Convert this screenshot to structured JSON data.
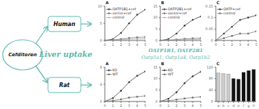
{
  "title": "Liver uptake",
  "color": "#5BB8B0",
  "annotations": [
    "Cefditoren",
    "Human",
    "Rat",
    "OATP1B1, OATP2B1",
    "Oatp1a1, Oatp1a4, Oatp1b2"
  ],
  "chart_data": [
    {
      "type": "line",
      "title": "A",
      "legend": "upper left",
      "x": [
        0,
        1,
        2,
        3,
        4,
        5
      ],
      "xlim": [
        0,
        5
      ],
      "xticks": [
        0,
        1,
        2,
        3,
        4,
        5
      ],
      "ylim": [
        0,
        10
      ],
      "yticks": [
        0,
        5,
        10
      ],
      "series": [
        {
          "name": "OATP1B1+cef",
          "color": "#333333",
          "marker": "circle",
          "values": [
            0.0,
            0.4,
            2.2,
            5.0,
            7.5,
            9.0
          ]
        },
        {
          "name": "vector+cef",
          "color": "#777777",
          "marker": "square",
          "values": [
            0.0,
            0.15,
            0.4,
            0.7,
            0.9,
            1.0
          ]
        },
        {
          "name": "control",
          "color": "#aaaaaa",
          "marker": "triangle",
          "values": [
            0.0,
            0.08,
            0.2,
            0.35,
            0.45,
            0.5
          ]
        }
      ]
    },
    {
      "type": "line",
      "title": "B",
      "legend": "upper left",
      "x": [
        0,
        1,
        2,
        3,
        4,
        5
      ],
      "xlim": [
        0,
        5
      ],
      "xticks": [
        0,
        1,
        2,
        3,
        4,
        5
      ],
      "ylim": [
        0,
        15
      ],
      "yticks": [
        0,
        5,
        10,
        15
      ],
      "series": [
        {
          "name": "OATP2B1+cef",
          "color": "#333333",
          "marker": "circle",
          "values": [
            0.0,
            0.6,
            3.0,
            6.5,
            9.0,
            10.5
          ]
        },
        {
          "name": "vector+cef",
          "color": "#777777",
          "marker": "square",
          "values": [
            0.0,
            0.15,
            0.4,
            0.7,
            0.9,
            1.0
          ]
        },
        {
          "name": "control",
          "color": "#aaaaaa",
          "marker": "triangle",
          "values": [
            0.0,
            0.08,
            0.2,
            0.35,
            0.45,
            0.5
          ]
        }
      ]
    },
    {
      "type": "line",
      "title": "C",
      "legend": "upper left",
      "x": [
        0,
        1,
        2,
        3,
        4,
        5
      ],
      "xlim": [
        0,
        5
      ],
      "xticks": [
        0,
        1,
        2,
        3,
        4,
        5
      ],
      "ylim": [
        0,
        0.15
      ],
      "yticks": [
        0,
        0.05,
        0.1,
        0.15
      ],
      "series": [
        {
          "name": "OATP+cef",
          "color": "#333333",
          "marker": "circle",
          "values": [
            0.0,
            0.03,
            0.06,
            0.09,
            0.1,
            0.11
          ]
        },
        {
          "name": "control",
          "color": "#777777",
          "marker": "square",
          "values": [
            0.0,
            0.01,
            0.02,
            0.03,
            0.03,
            0.04
          ]
        }
      ]
    },
    {
      "type": "line",
      "title": "A",
      "legend": "upper left",
      "x": [
        0,
        1,
        2,
        3,
        4,
        5
      ],
      "xlim": [
        0,
        5
      ],
      "xticks": [
        0,
        1,
        2,
        3,
        4,
        5
      ],
      "ylim": [
        0,
        8
      ],
      "yticks": [
        0,
        4,
        8
      ],
      "series": [
        {
          "name": "KO",
          "color": "#333333",
          "marker": "circle",
          "values": [
            0.0,
            0.8,
            2.5,
            4.5,
            6.0,
            7.0
          ]
        },
        {
          "name": "WT",
          "color": "#777777",
          "marker": "square",
          "values": [
            0.0,
            0.2,
            0.5,
            0.9,
            1.1,
            1.3
          ]
        }
      ]
    },
    {
      "type": "line",
      "title": "B",
      "legend": "upper left",
      "x": [
        0,
        1,
        2,
        3,
        4,
        5
      ],
      "xlim": [
        0,
        5
      ],
      "xticks": [
        0,
        1,
        2,
        3,
        4,
        5
      ],
      "ylim": [
        0,
        15
      ],
      "yticks": [
        0,
        5,
        10,
        15
      ],
      "series": [
        {
          "name": "KO",
          "color": "#333333",
          "marker": "circle",
          "values": [
            0.0,
            1.2,
            4.0,
            8.0,
            11.0,
            13.0
          ]
        },
        {
          "name": "WT",
          "color": "#777777",
          "marker": "square",
          "values": [
            0.0,
            0.3,
            0.8,
            1.3,
            1.7,
            2.0
          ]
        }
      ]
    },
    {
      "type": "bar",
      "title": "C",
      "categories": [
        "a",
        "b",
        "c",
        "d",
        "e",
        "f",
        "g",
        "h"
      ],
      "values": [
        100,
        98,
        96,
        80,
        78,
        102,
        108,
        112
      ],
      "colors": [
        "#cccccc",
        "#cccccc",
        "#cccccc",
        "#111111",
        "#111111",
        "#111111",
        "#111111",
        "#111111"
      ],
      "ylim": [
        0,
        120
      ],
      "yticks": [
        0,
        40,
        80,
        120
      ]
    }
  ]
}
